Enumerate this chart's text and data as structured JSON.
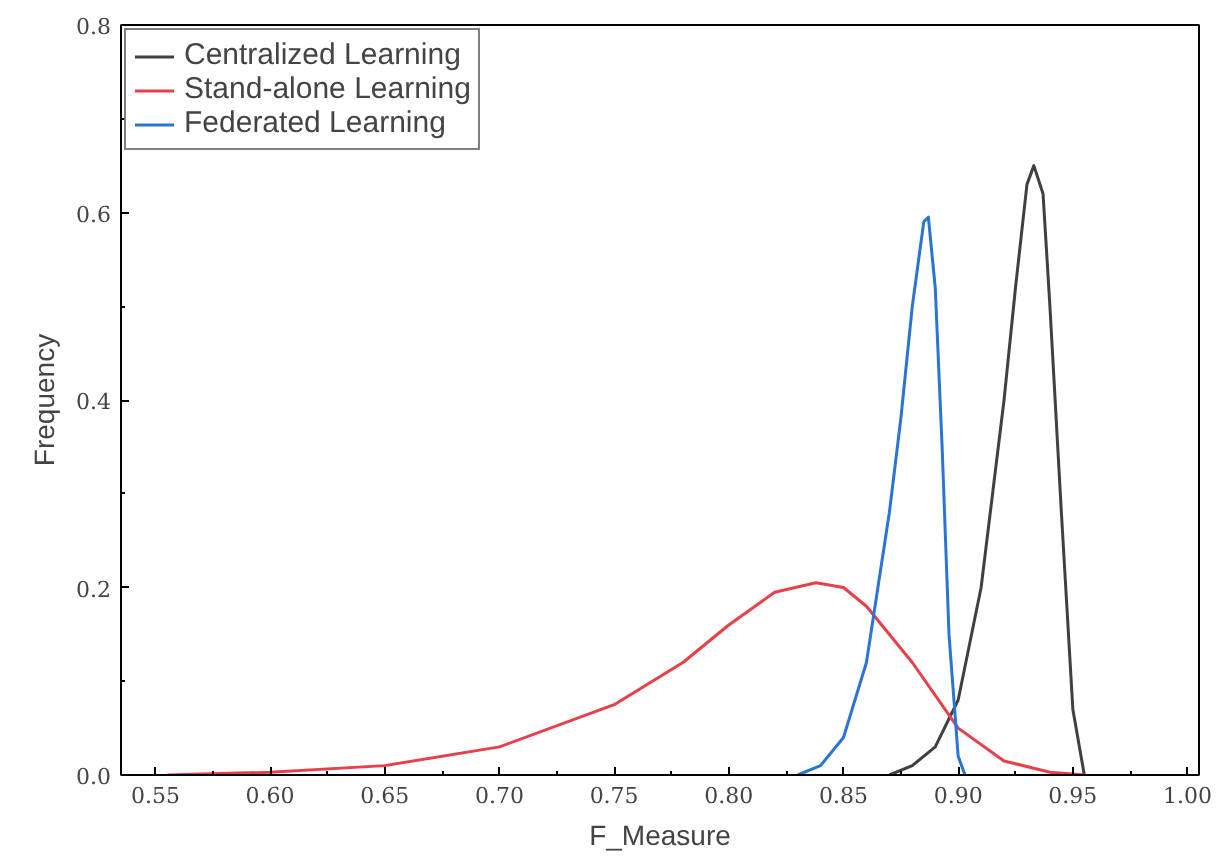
{
  "chart_data": {
    "type": "line",
    "xlabel": "F_Measure",
    "ylabel": "Frequency",
    "xlim": [
      0.535,
      1.005
    ],
    "ylim": [
      0,
      0.8
    ],
    "xticks": [
      {
        "value": 0.55,
        "label": "0.55"
      },
      {
        "value": 0.6,
        "label": "0.60"
      },
      {
        "value": 0.65,
        "label": "0.65"
      },
      {
        "value": 0.7,
        "label": "0.70"
      },
      {
        "value": 0.75,
        "label": "0.75"
      },
      {
        "value": 0.8,
        "label": "0.80"
      },
      {
        "value": 0.85,
        "label": "0.85"
      },
      {
        "value": 0.9,
        "label": "0.90"
      },
      {
        "value": 0.95,
        "label": "0.95"
      },
      {
        "value": 1.0,
        "label": "1.00"
      }
    ],
    "yticks": [
      {
        "value": 0,
        "label": "0.0"
      },
      {
        "value": 0.2,
        "label": "0.2"
      },
      {
        "value": 0.4,
        "label": "0.4"
      },
      {
        "value": 0.6,
        "label": "0.6"
      },
      {
        "value": 0.8,
        "label": "0.8"
      }
    ],
    "grid": false,
    "legend": "top left",
    "marker": "none",
    "line_style": "solid",
    "series": [
      {
        "name": "Centralized Learning",
        "color": "#404040",
        "x": [
          0.87,
          0.88,
          0.89,
          0.9,
          0.91,
          0.92,
          0.925,
          0.93,
          0.933,
          0.937,
          0.94,
          0.945,
          0.95,
          0.955
        ],
        "values": [
          0.0,
          0.01,
          0.03,
          0.08,
          0.2,
          0.4,
          0.52,
          0.63,
          0.65,
          0.62,
          0.5,
          0.28,
          0.07,
          0.0
        ]
      },
      {
        "name": "Stand-alone Learning",
        "color": "#e8404a",
        "x": [
          0.555,
          0.6,
          0.65,
          0.7,
          0.75,
          0.78,
          0.8,
          0.82,
          0.838,
          0.85,
          0.86,
          0.88,
          0.9,
          0.92,
          0.94,
          0.955
        ],
        "values": [
          0.0,
          0.003,
          0.01,
          0.03,
          0.075,
          0.12,
          0.16,
          0.195,
          0.205,
          0.2,
          0.18,
          0.12,
          0.05,
          0.015,
          0.003,
          0.0
        ]
      },
      {
        "name": "Federated Learning",
        "color": "#2a74d4",
        "x": [
          0.83,
          0.84,
          0.85,
          0.86,
          0.87,
          0.875,
          0.88,
          0.885,
          0.887,
          0.89,
          0.893,
          0.896,
          0.9,
          0.903
        ],
        "values": [
          0.0,
          0.01,
          0.04,
          0.12,
          0.28,
          0.38,
          0.5,
          0.59,
          0.595,
          0.52,
          0.35,
          0.15,
          0.02,
          0.0
        ]
      }
    ]
  }
}
